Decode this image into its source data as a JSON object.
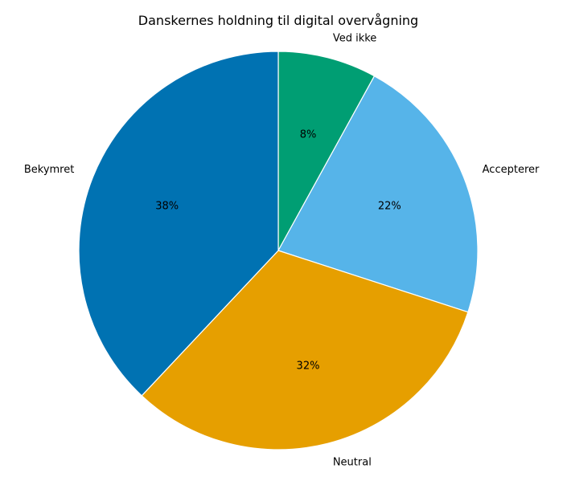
{
  "chart_data": {
    "type": "pie",
    "title": "Danskernes holdning til digital overvågning",
    "start_angle_deg": 90,
    "direction": "clockwise",
    "slices": [
      {
        "label": "Ved ikke",
        "value": 8,
        "pct_label": "8%",
        "color": "#009E73"
      },
      {
        "label": "Accepterer",
        "value": 22,
        "pct_label": "22%",
        "color": "#56B4E9"
      },
      {
        "label": "Neutral",
        "value": 32,
        "pct_label": "32%",
        "color": "#E69F00"
      },
      {
        "label": "Bekymret",
        "value": 38,
        "pct_label": "38%",
        "color": "#0072B2"
      }
    ],
    "edge_color": "#ffffff"
  }
}
